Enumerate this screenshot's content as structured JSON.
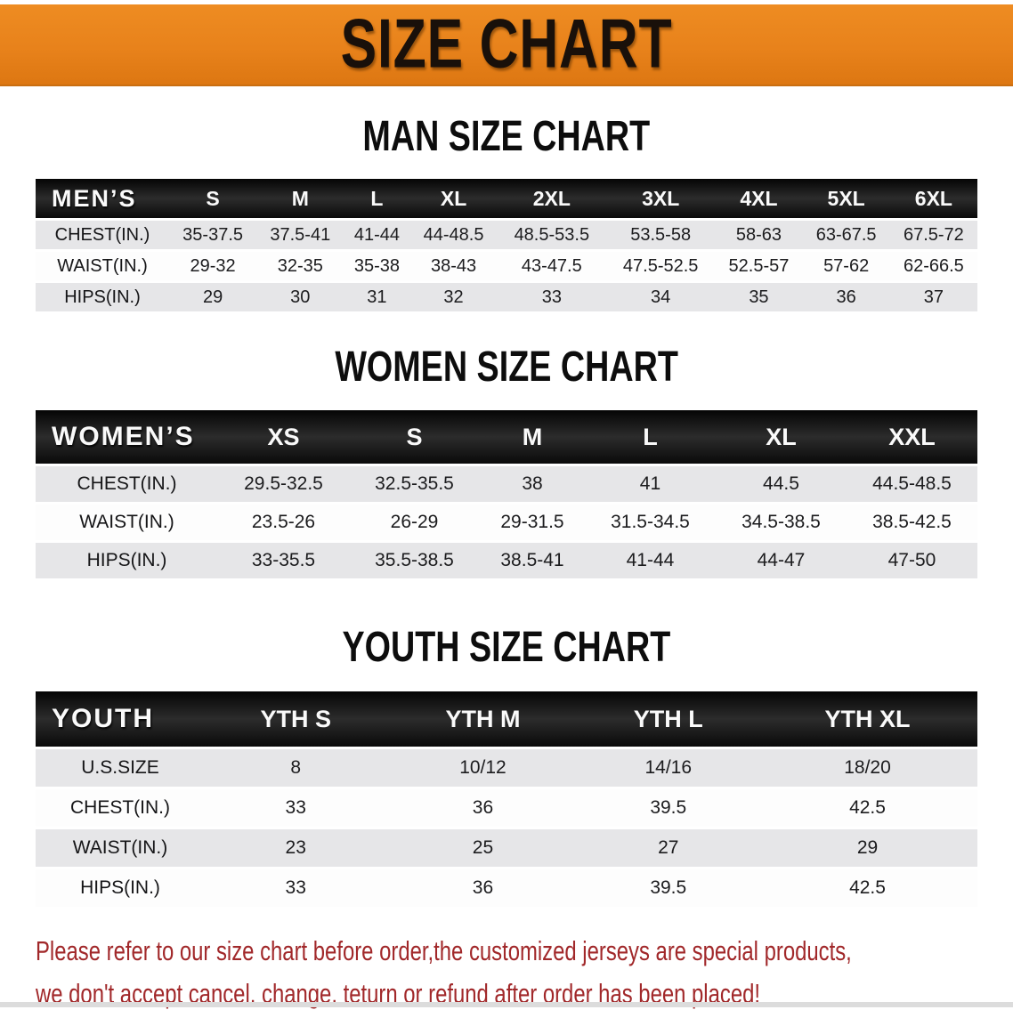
{
  "banner": {
    "title": "SIZE CHART"
  },
  "colors": {
    "banner_orange": "#E8821B",
    "header_black": "#141414",
    "row_gray": "#E6E6E8",
    "note_red": "#A1282A"
  },
  "men": {
    "title": "MAN SIZE CHART",
    "label": "MEN’S",
    "sizes": [
      "S",
      "M",
      "L",
      "XL",
      "2XL",
      "3XL",
      "4XL",
      "5XL",
      "6XL"
    ],
    "rows": [
      {
        "label": "CHEST(IN.)",
        "values": [
          "35-37.5",
          "37.5-41",
          "41-44",
          "44-48.5",
          "48.5-53.5",
          "53.5-58",
          "58-63",
          "63-67.5",
          "67.5-72"
        ]
      },
      {
        "label": "WAIST(IN.)",
        "values": [
          "29-32",
          "32-35",
          "35-38",
          "38-43",
          "43-47.5",
          "47.5-52.5",
          "52.5-57",
          "57-62",
          "62-66.5"
        ]
      },
      {
        "label": "HIPS(IN.)",
        "values": [
          "29",
          "30",
          "31",
          "32",
          "33",
          "34",
          "35",
          "36",
          "37"
        ]
      }
    ]
  },
  "women": {
    "title": "WOMEN SIZE CHART",
    "label": "WOMEN’S",
    "sizes": [
      "XS",
      "S",
      "M",
      "L",
      "XL",
      "XXL"
    ],
    "rows": [
      {
        "label": "CHEST(IN.)",
        "values": [
          "29.5-32.5",
          "32.5-35.5",
          "38",
          "41",
          "44.5",
          "44.5-48.5"
        ]
      },
      {
        "label": "WAIST(IN.)",
        "values": [
          "23.5-26",
          "26-29",
          "29-31.5",
          "31.5-34.5",
          "34.5-38.5",
          "38.5-42.5"
        ]
      },
      {
        "label": "HIPS(IN.)",
        "values": [
          "33-35.5",
          "35.5-38.5",
          "38.5-41",
          "41-44",
          "44-47",
          "47-50"
        ]
      }
    ]
  },
  "youth": {
    "title": "YOUTH SIZE CHART",
    "label": "YOUTH",
    "sizes": [
      "YTH S",
      "YTH M",
      "YTH L",
      "YTH XL"
    ],
    "rows": [
      {
        "label": "U.S.SIZE",
        "values": [
          "8",
          "10/12",
          "14/16",
          "18/20"
        ]
      },
      {
        "label": "CHEST(IN.)",
        "values": [
          "33",
          "36",
          "39.5",
          "42.5"
        ]
      },
      {
        "label": "WAIST(IN.)",
        "values": [
          "23",
          "25",
          "27",
          "29"
        ]
      },
      {
        "label": "HIPS(IN.)",
        "values": [
          "33",
          "36",
          "39.5",
          "42.5"
        ]
      }
    ]
  },
  "footer": {
    "line1": "Please refer to our size chart before order,the customized jerseys are special products,",
    "line2": "we don't accept cancel, change, teturn or refund after order has been placed!"
  }
}
